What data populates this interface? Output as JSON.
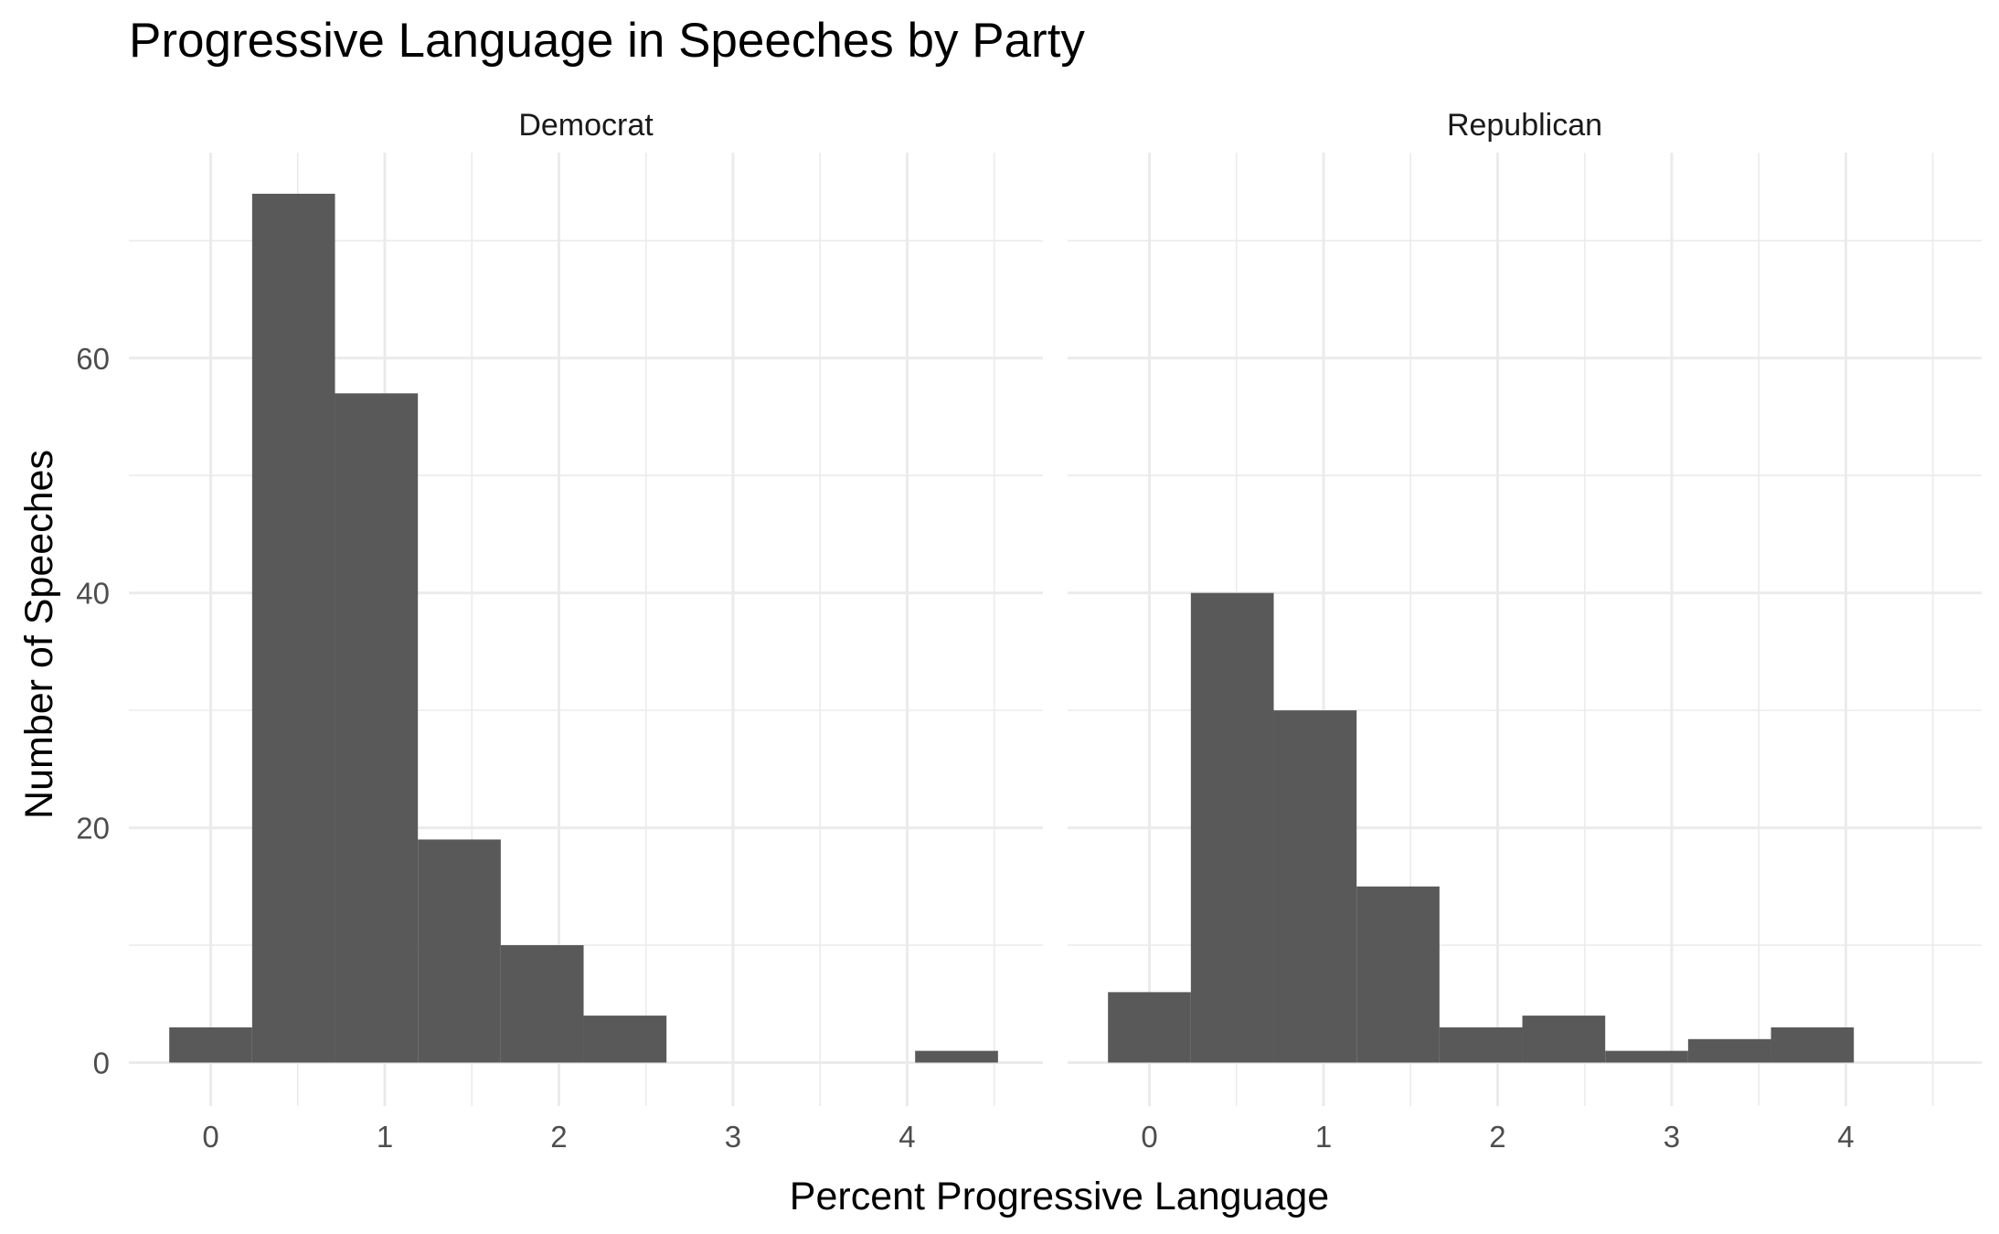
{
  "chart_data": {
    "type": "bar",
    "title": "Progressive Language in Speeches by Party",
    "xlabel": "Percent Progressive Language",
    "ylabel": "Number of Speeches",
    "xlim": [
      -0.47,
      4.78
    ],
    "ylim": [
      -3.7,
      77.5
    ],
    "x_ticks": [
      0,
      1,
      2,
      3,
      4
    ],
    "x_tick_labels": [
      "0",
      "1",
      "2",
      "3",
      "4"
    ],
    "y_ticks": [
      0,
      20,
      40,
      60
    ],
    "y_tick_labels": [
      "0",
      "20",
      "40",
      "60"
    ],
    "grid": true,
    "bin_width": 0.476,
    "bin_centers": [
      0,
      0.476,
      0.952,
      1.428,
      1.904,
      2.38,
      2.856,
      3.332,
      3.808,
      4.284
    ],
    "panels": [
      {
        "label": "Democrat",
        "counts": [
          3,
          74,
          57,
          19,
          10,
          4,
          0,
          0,
          0,
          1
        ]
      },
      {
        "label": "Republican",
        "counts": [
          6,
          40,
          30,
          15,
          3,
          4,
          1,
          2,
          3,
          0
        ]
      }
    ]
  }
}
